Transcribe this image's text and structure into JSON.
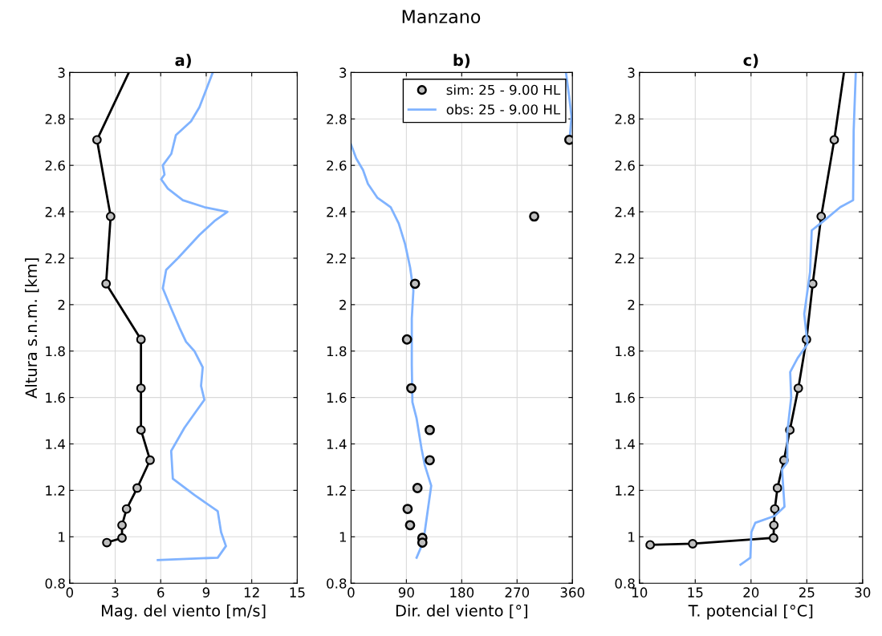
{
  "chart_data": [
    {
      "type": "line",
      "title": "a)",
      "xlabel": "Mag. del viento [m/s]",
      "ylabel": "Altura s.n.m. [km]",
      "annotations": [
        "Manzano"
      ],
      "xlim": [
        0,
        15
      ],
      "xticks": [
        0,
        3,
        6,
        9,
        12,
        15
      ],
      "ylim": [
        0.8,
        3
      ],
      "yticks": [
        0.8,
        1,
        1.2,
        1.4,
        1.6,
        1.8,
        2,
        2.2,
        2.4,
        2.6,
        2.8,
        3
      ],
      "grid": true,
      "series": [
        {
          "color": "#000000",
          "x": [
            3.9,
            1.8
          ],
          "values": [
            3.0,
            2.71
          ]
        },
        {
          "color": "#000000",
          "marker": "circle",
          "x": [
            1.8,
            2.7,
            2.4,
            4.7,
            4.7,
            4.7,
            5.3,
            4.45,
            3.75,
            3.45,
            3.45,
            2.45
          ],
          "values": [
            2.71,
            2.38,
            2.09,
            1.85,
            1.64,
            1.46,
            1.33,
            1.21,
            1.12,
            1.05,
            0.995,
            0.975
          ]
        },
        {
          "color": "#80b3ff",
          "x": [
            9.43,
            8.55,
            8.0,
            7.0,
            6.7,
            6.14,
            6.25,
            6.03,
            6.47,
            7.46,
            8.88,
            10.4,
            9.54,
            8.55,
            7.13,
            6.36,
            6.14,
            6.58,
            7.24,
            7.67,
            8.22,
            8.77,
            8.66,
            8.88,
            8.33,
            7.57,
            6.69,
            6.8,
            8.22,
            9.76,
            9.98,
            10.3,
            9.76,
            5.81
          ],
          "values": [
            3.0,
            2.85,
            2.79,
            2.73,
            2.65,
            2.6,
            2.56,
            2.54,
            2.5,
            2.45,
            2.42,
            2.4,
            2.36,
            2.3,
            2.2,
            2.15,
            2.07,
            2.0,
            1.9,
            1.84,
            1.8,
            1.73,
            1.65,
            1.59,
            1.54,
            1.47,
            1.37,
            1.25,
            1.18,
            1.11,
            1.02,
            0.96,
            0.91,
            0.9
          ]
        }
      ]
    },
    {
      "type": "line",
      "title": "b)",
      "xlabel": "Dir. del viento [°]",
      "xlim": [
        0,
        360
      ],
      "xticks": [
        0,
        90,
        180,
        270,
        360
      ],
      "ylim": [
        0.8,
        3
      ],
      "yticks": [
        0.8,
        1,
        1.2,
        1.4,
        1.6,
        1.8,
        2,
        2.2,
        2.4,
        2.6,
        2.8,
        3
      ],
      "grid": true,
      "legend": "top right",
      "series": [
        {
          "type": "scatter",
          "name": "sim: 25 - 9.00 HL",
          "color": "#000000",
          "marker": "circle",
          "x": [
            355,
            297.8,
            104,
            91,
            98,
            128,
            128,
            108,
            92,
            96,
            116,
            116
          ],
          "values": [
            2.71,
            2.38,
            2.09,
            1.85,
            1.64,
            1.46,
            1.33,
            1.21,
            1.12,
            1.05,
            0.995,
            0.975
          ]
        },
        {
          "name": "obs: 25 - 9.00 HL",
          "color": "#80b3ff",
          "x": [
            349.5,
            355,
            358.5,
            356,
            null,
            0,
            8.4,
            19.5,
            27.5,
            43,
            64.5,
            77.6,
            88,
            96.1,
            101.4,
            98.8,
            98.8,
            99.8,
            106.6,
            114.6,
            119.8,
            130.4,
            125.1,
            119.8,
            114.6,
            106.6
          ],
          "values": [
            3.0,
            2.89,
            2.81,
            2.73,
            null,
            2.69,
            2.63,
            2.58,
            2.52,
            2.46,
            2.42,
            2.35,
            2.26,
            2.16,
            2.06,
            1.94,
            1.74,
            1.58,
            1.51,
            1.38,
            1.31,
            1.22,
            1.12,
            1.02,
            0.96,
            0.91
          ]
        }
      ]
    },
    {
      "type": "line",
      "title": "c)",
      "xlabel": "T. potencial [°C]",
      "xlim": [
        10,
        30
      ],
      "xticks": [
        10,
        15,
        20,
        25,
        30
      ],
      "ylim": [
        0.8,
        3
      ],
      "yticks": [
        0.8,
        1,
        1.2,
        1.4,
        1.6,
        1.8,
        2,
        2.2,
        2.4,
        2.6,
        2.8,
        3
      ],
      "grid": true,
      "series": [
        {
          "color": "#000000",
          "x": [
            28.33,
            27.46
          ],
          "values": [
            3.0,
            2.71
          ]
        },
        {
          "color": "#000000",
          "marker": "circle",
          "x": [
            27.46,
            26.29,
            25.53,
            24.97,
            24.24,
            23.48,
            22.95,
            22.37,
            22.13,
            22.05,
            22.02,
            14.77,
            10.96
          ],
          "values": [
            2.71,
            2.38,
            2.09,
            1.85,
            1.64,
            1.46,
            1.33,
            1.21,
            1.12,
            1.05,
            0.995,
            0.97,
            0.965
          ]
        },
        {
          "color": "#80b3ff",
          "x": [
            29.39,
            29.2,
            29.15,
            28.0,
            26.5,
            25.44,
            25.29,
            24.77,
            25.06,
            24.18,
            23.51,
            23.6,
            23.25,
            23.25,
            22.78,
            23.0,
            22.13,
            20.38,
            20.03,
            19.94,
            19.06
          ],
          "values": [
            3.0,
            2.75,
            2.45,
            2.42,
            2.36,
            2.32,
            2.14,
            1.96,
            1.83,
            1.77,
            1.71,
            1.6,
            1.45,
            1.32,
            1.29,
            1.13,
            1.09,
            1.06,
            1.02,
            0.91,
            0.88
          ]
        }
      ]
    }
  ]
}
